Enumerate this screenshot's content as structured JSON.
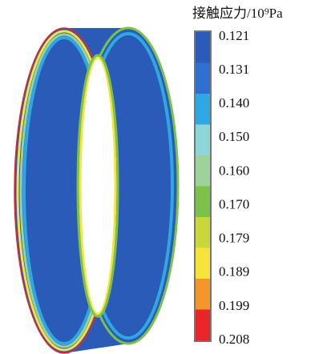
{
  "legend": {
    "title": "接触应力/10⁹Pa",
    "ticks": [
      "0.121",
      "0.131",
      "0.140",
      "0.150",
      "0.160",
      "0.170",
      "0.179",
      "0.189",
      "0.199",
      "0.208"
    ],
    "colors": [
      "#2a5bb8",
      "#2f6fd0",
      "#2fa7e2",
      "#8fd6d8",
      "#9fd29a",
      "#7cc24a",
      "#c8d83a",
      "#f7e43a",
      "#f4972b",
      "#e8262a"
    ]
  }
}
